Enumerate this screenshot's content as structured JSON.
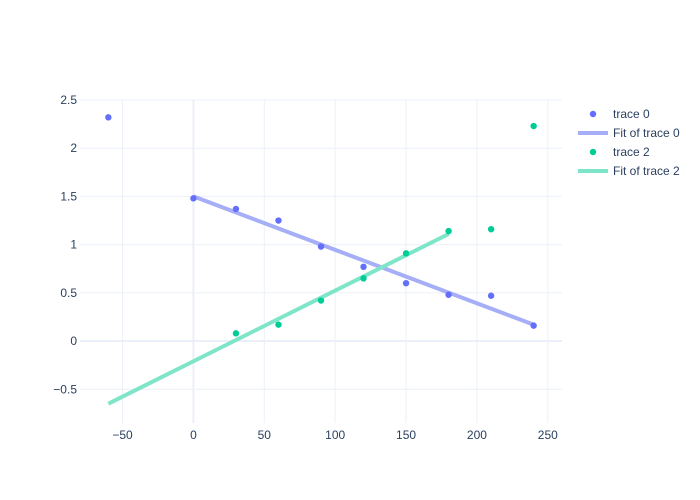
{
  "chart_data": {
    "type": "scatter",
    "title": "",
    "xlabel": "",
    "ylabel": "",
    "xlim": [
      -80,
      260
    ],
    "ylim": [
      -0.85,
      2.5
    ],
    "xticks": [
      -50,
      0,
      50,
      100,
      150,
      200,
      250
    ],
    "xtick_labels": [
      "−50",
      "0",
      "50",
      "100",
      "150",
      "200",
      "250"
    ],
    "yticks": [
      -0.5,
      0,
      0.5,
      1,
      1.5,
      2,
      2.5
    ],
    "ytick_labels": [
      "−0.5",
      "0",
      "0.5",
      "1",
      "1.5",
      "2",
      "2.5"
    ],
    "grid": true,
    "legend_position": "top-right",
    "series": [
      {
        "name": "trace 0",
        "mode": "markers",
        "color": "#636efa",
        "x": [
          -60,
          0,
          30,
          60,
          90,
          120,
          150,
          180,
          210,
          240
        ],
        "y": [
          2.32,
          1.48,
          1.37,
          1.25,
          0.98,
          0.77,
          0.6,
          0.48,
          0.47,
          0.16
        ]
      },
      {
        "name": "Fit of trace 0",
        "mode": "line",
        "color": "#a5aef6",
        "x": [
          0,
          240
        ],
        "y": [
          1.5,
          0.17
        ]
      },
      {
        "name": "trace 2",
        "mode": "markers",
        "color": "#00cc96",
        "x": [
          30,
          60,
          90,
          120,
          150,
          180,
          210,
          240
        ],
        "y": [
          0.08,
          0.17,
          0.42,
          0.65,
          0.91,
          1.14,
          1.16,
          2.23
        ]
      },
      {
        "name": "Fit of trace 2",
        "mode": "line",
        "color": "#7fe5c9",
        "x": [
          -60,
          180
        ],
        "y": [
          -0.65,
          1.11
        ]
      }
    ]
  }
}
